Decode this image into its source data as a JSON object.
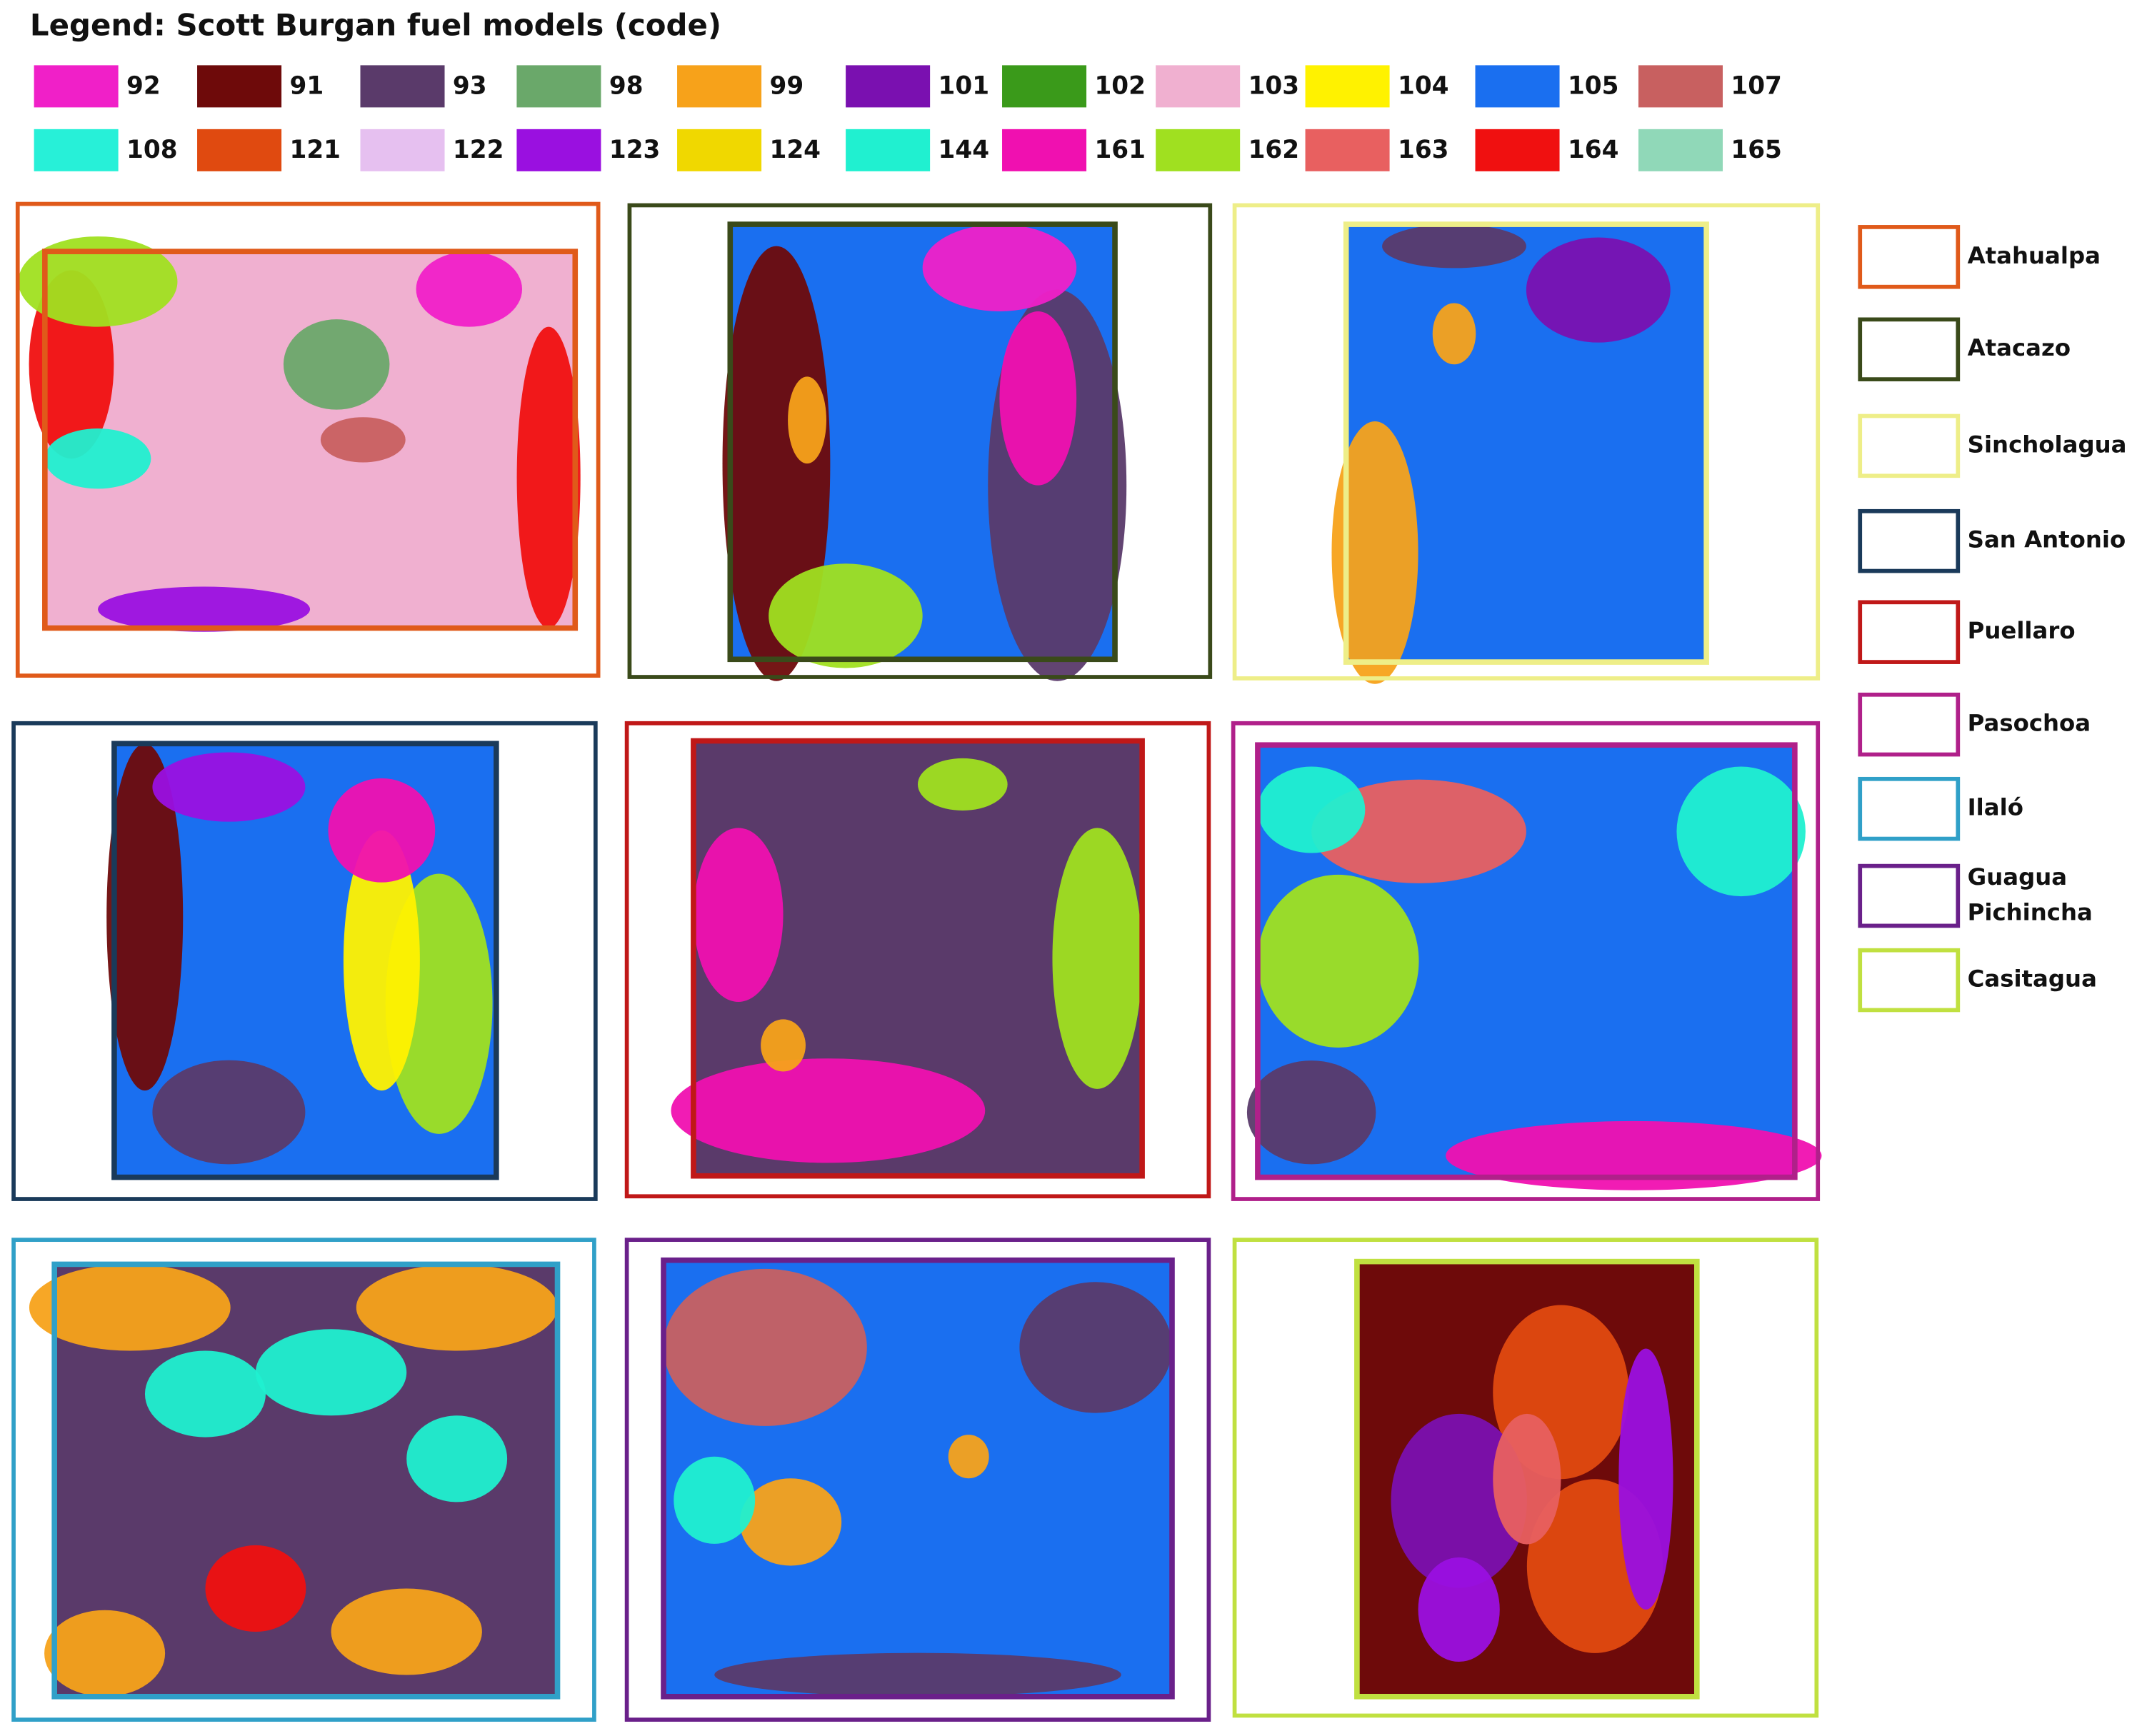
{
  "legend": {
    "title": "Legend:  Scott Burgan fuel models (code)",
    "items": [
      {
        "code": "92",
        "color": "#f020c8"
      },
      {
        "code": "91",
        "color": "#6e0a0a"
      },
      {
        "code": "93",
        "color": "#5a3a6a"
      },
      {
        "code": "98",
        "color": "#6aa86a"
      },
      {
        "code": "99",
        "color": "#f7a21a"
      },
      {
        "code": "101",
        "color": "#7a10b0"
      },
      {
        "code": "102",
        "color": "#3a9a1a"
      },
      {
        "code": "103",
        "color": "#f0b0d0"
      },
      {
        "code": "104",
        "color": "#fff200"
      },
      {
        "code": "105",
        "color": "#1a6ff0"
      },
      {
        "code": "107",
        "color": "#c86060"
      },
      {
        "code": "108",
        "color": "#27f0d8"
      },
      {
        "code": "121",
        "color": "#e04a10"
      },
      {
        "code": "122",
        "color": "#e6c0f0"
      },
      {
        "code": "123",
        "color": "#9a10e0"
      },
      {
        "code": "124",
        "color": "#f0d800"
      },
      {
        "code": "144",
        "color": "#20f0d0"
      },
      {
        "code": "161",
        "color": "#f010b0"
      },
      {
        "code": "162",
        "color": "#a0e020"
      },
      {
        "code": "163",
        "color": "#e86060"
      },
      {
        "code": "164",
        "color": "#f01010"
      },
      {
        "code": "165",
        "color": "#90d8b8"
      }
    ]
  },
  "areas": [
    {
      "name_lines": [
        "Atahualpa"
      ],
      "color": "#e05a1a"
    },
    {
      "name_lines": [
        "Atacazo"
      ],
      "color": "#3a4a1a"
    },
    {
      "name_lines": [
        "Sincholagua"
      ],
      "color": "#eeee88"
    },
    {
      "name_lines": [
        "San Antonio"
      ],
      "color": "#1a3a5a"
    },
    {
      "name_lines": [
        "Puellaro"
      ],
      "color": "#c01818"
    },
    {
      "name_lines": [
        "Pasochoa"
      ],
      "color": "#b0208a"
    },
    {
      "name_lines": [
        "Ilaló"
      ],
      "color": "#30a0c8"
    },
    {
      "name_lines": [
        "Guagua",
        "Pichincha"
      ],
      "color": "#6a208a"
    },
    {
      "name_lines": [
        "Casitagua"
      ],
      "color": "#c0e040"
    }
  ]
}
